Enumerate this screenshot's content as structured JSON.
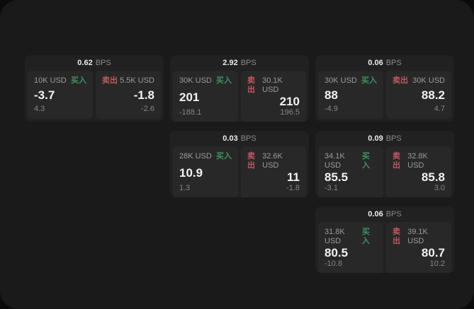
{
  "labels": {
    "bps_unit": "BPS",
    "buy": "买入",
    "sell": "卖出"
  },
  "colors": {
    "backdrop": "#0b0b0b",
    "page_background": "#1a1a1a",
    "card_background": "#212121",
    "panel_background": "#282828",
    "buy_green": "#3f9160",
    "sell_red": "#c25663"
  },
  "cards": [
    {
      "bps": "0.62",
      "buy": {
        "amount": "10K USD",
        "price": "-3.7",
        "change": "4.3"
      },
      "sell": {
        "amount": "5.5K USD",
        "price": "-1.8",
        "change": "-2.6"
      }
    },
    {
      "bps": "2.92",
      "buy": {
        "amount": "30K USD",
        "price": "201",
        "change": "-188.1"
      },
      "sell": {
        "amount": "30.1K USD",
        "price": "210",
        "change": "196.5"
      }
    },
    {
      "bps": "0.06",
      "buy": {
        "amount": "30K USD",
        "price": "88",
        "change": "-4.9"
      },
      "sell": {
        "amount": "30K USD",
        "price": "88.2",
        "change": "4.7"
      }
    },
    {
      "bps": "0.03",
      "buy": {
        "amount": "28K USD",
        "price": "10.9",
        "change": "1.3"
      },
      "sell": {
        "amount": "32.6K USD",
        "price": "11",
        "change": "-1.8"
      }
    },
    {
      "bps": "0.09",
      "buy": {
        "amount": "34.1K USD",
        "price": "85.5",
        "change": "-3.1"
      },
      "sell": {
        "amount": "32.8K USD",
        "price": "85.8",
        "change": "3.0"
      }
    },
    {
      "bps": "0.06",
      "buy": {
        "amount": "31.8K USD",
        "price": "80.5",
        "change": "-10.8"
      },
      "sell": {
        "amount": "39.1K USD",
        "price": "80.7",
        "change": "10.2"
      }
    }
  ]
}
